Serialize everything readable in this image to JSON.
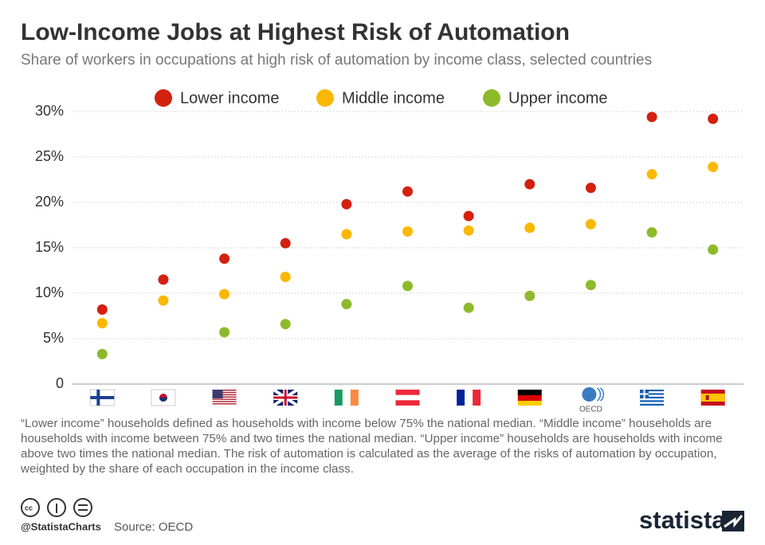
{
  "chart_data": {
    "type": "dot",
    "title": "Low-Income Jobs at Highest Risk of Automation",
    "subtitle": "Share of workers in occupations at high risk of automation by income class, selected countries",
    "categories": [
      null,
      null,
      null,
      null,
      null,
      null,
      null,
      null,
      "OECD",
      null,
      null
    ],
    "series": [
      {
        "name": "Lower income",
        "color": "#d4200f",
        "values": [
          8.2,
          11.5,
          13.8,
          15.5,
          19.8,
          21.2,
          18.5,
          22.0,
          21.6,
          29.4,
          29.2
        ]
      },
      {
        "name": "Middle income",
        "color": "#fbb800",
        "values": [
          6.7,
          9.2,
          9.9,
          11.8,
          16.5,
          16.8,
          16.9,
          17.2,
          17.6,
          23.1,
          23.9
        ]
      },
      {
        "name": "Upper income",
        "color": "#8dba2a",
        "values": [
          3.3,
          null,
          5.7,
          6.6,
          8.8,
          10.8,
          8.4,
          9.7,
          10.9,
          16.7,
          14.8
        ]
      }
    ],
    "ylim": [
      0,
      30
    ],
    "yticks": [
      0,
      {
        "value": 5,
        "label": "5%"
      },
      {
        "value": 10,
        "label": "10%"
      },
      {
        "value": 15,
        "label": "15%"
      },
      {
        "value": 20,
        "label": "20%"
      },
      {
        "value": 25,
        "label": "25%"
      },
      {
        "value": 30,
        "label": "30%"
      }
    ],
    "grid": true,
    "legend": "top",
    "note": "“Lower income” households defined as households with income below 75% the national median. “Middle income” households are households with income between 75% and two times the national median. “Upper income” households are households with income above two times the national median. The risk of automation is calculated as the average of the risks of automation by occupation, weighted by the share of each occupation in the income class.",
    "credit": "@StatistaCharts",
    "source": "Source: OECD",
    "brand": "statista"
  }
}
